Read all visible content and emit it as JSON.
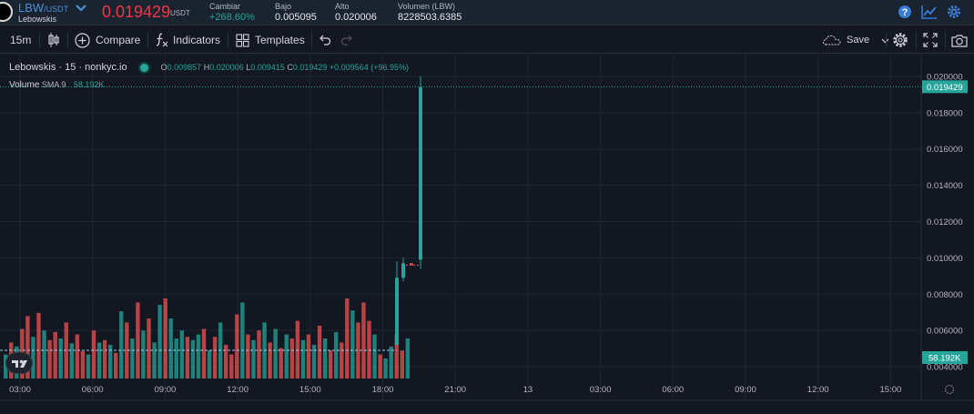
{
  "market": {
    "base": "LBW",
    "quote": "/USDT",
    "name": "Lebowskis",
    "price": "0.019429",
    "price_unit": "USDT",
    "stats": [
      {
        "label": "Cambiar",
        "value": "+268.60%",
        "up": true
      },
      {
        "label": "Bajo",
        "value": "0.005095"
      },
      {
        "label": "Alto",
        "value": "0.020006"
      },
      {
        "label": "Volumen (LBW)",
        "value": "8228503.6385"
      }
    ],
    "icons": [
      "help-icon",
      "chart-line-icon",
      "settings-icon"
    ]
  },
  "toolbar": {
    "interval": "15m",
    "compare": "Compare",
    "indicators": "Indicators",
    "templates": "Templates",
    "save": "Save"
  },
  "legend": {
    "title": "Lebowskis · 15 · nonkyc.io",
    "o_label": "O",
    "o_value": "0.009857",
    "h_label": "H",
    "h_value": "0.020006",
    "l_label": "L",
    "l_value": "0.009415",
    "c_label": "C",
    "c_value": "0.019429",
    "change": "+0.009564 (+96.95%)",
    "volume_label": "Volume",
    "volume_sma": "SMA 9",
    "volume_value": "58.192K"
  },
  "colors": {
    "up": "#26a69a",
    "down": "#ef5350",
    "background": "#131722",
    "grid": "#1f2430",
    "price_badge": "#26a69a"
  },
  "chart_data": {
    "type": "candlestick",
    "price_axis": {
      "ticks": [
        "0.020000",
        "0.018000",
        "0.016000",
        "0.014000",
        "0.012000",
        "0.010000",
        "0.008000",
        "0.006000",
        "0.004000"
      ],
      "min": 0.0034,
      "max": 0.0212
    },
    "last_price_label": "0.019429",
    "volume_sma_label": "58.192K",
    "time_axis": {
      "ticks": [
        "03:00",
        "06:00",
        "09:00",
        "12:00",
        "15:00",
        "18:00",
        "21:00",
        "13",
        "03:00",
        "06:00",
        "09:00",
        "12:00",
        "15:00"
      ]
    },
    "candles": [
      {
        "index": 0,
        "open": 0.0052,
        "high": 0.0098,
        "low": 0.0052,
        "close": 0.0089
      },
      {
        "index": 1,
        "open": 0.0089,
        "high": 0.01,
        "low": 0.0087,
        "close": 0.0097
      },
      {
        "index": 2,
        "open": 0.0097,
        "high": 0.0097,
        "low": 0.0096,
        "close": 0.0096
      },
      {
        "index": 3,
        "open": 0.0099,
        "high": 0.02,
        "low": 0.0094,
        "close": 0.0194
      }
    ],
    "volume_bars": [
      {
        "v": 0.3,
        "up": true
      },
      {
        "v": 0.45,
        "up": false
      },
      {
        "v": 0.4,
        "up": true
      },
      {
        "v": 0.62,
        "up": false
      },
      {
        "v": 0.78,
        "up": false
      },
      {
        "v": 0.52,
        "up": true
      },
      {
        "v": 0.82,
        "up": false
      },
      {
        "v": 0.6,
        "up": true
      },
      {
        "v": 0.48,
        "up": false
      },
      {
        "v": 0.58,
        "up": false
      },
      {
        "v": 0.5,
        "up": true
      },
      {
        "v": 0.7,
        "up": false
      },
      {
        "v": 0.44,
        "up": true
      },
      {
        "v": 0.55,
        "up": false
      },
      {
        "v": 0.34,
        "up": false
      },
      {
        "v": 0.3,
        "up": true
      },
      {
        "v": 0.6,
        "up": false
      },
      {
        "v": 0.45,
        "up": true
      },
      {
        "v": 0.48,
        "up": false
      },
      {
        "v": 0.42,
        "up": true
      },
      {
        "v": 0.32,
        "up": false
      },
      {
        "v": 0.84,
        "up": true
      },
      {
        "v": 0.7,
        "up": false
      },
      {
        "v": 0.5,
        "up": true
      },
      {
        "v": 0.95,
        "up": false
      },
      {
        "v": 0.6,
        "up": true
      },
      {
        "v": 0.75,
        "up": false
      },
      {
        "v": 0.45,
        "up": true
      },
      {
        "v": 0.92,
        "up": true
      },
      {
        "v": 1.0,
        "up": false
      },
      {
        "v": 0.75,
        "up": true
      },
      {
        "v": 0.5,
        "up": true
      },
      {
        "v": 0.6,
        "up": true
      },
      {
        "v": 0.52,
        "up": false
      },
      {
        "v": 0.48,
        "up": true
      },
      {
        "v": 0.55,
        "up": true
      },
      {
        "v": 0.62,
        "up": false
      },
      {
        "v": 0.35,
        "up": true
      },
      {
        "v": 0.52,
        "up": false
      },
      {
        "v": 0.7,
        "up": true
      },
      {
        "v": 0.42,
        "up": false
      },
      {
        "v": 0.3,
        "up": false
      },
      {
        "v": 0.8,
        "up": false
      },
      {
        "v": 0.95,
        "up": true
      },
      {
        "v": 0.55,
        "up": false
      },
      {
        "v": 0.48,
        "up": true
      },
      {
        "v": 0.6,
        "up": false
      },
      {
        "v": 0.7,
        "up": true
      },
      {
        "v": 0.45,
        "up": false
      },
      {
        "v": 0.62,
        "up": true
      },
      {
        "v": 0.38,
        "up": false
      },
      {
        "v": 0.55,
        "up": true
      },
      {
        "v": 0.5,
        "up": false
      },
      {
        "v": 0.72,
        "up": false
      },
      {
        "v": 0.48,
        "up": true
      },
      {
        "v": 0.55,
        "up": false
      },
      {
        "v": 0.42,
        "up": true
      },
      {
        "v": 0.66,
        "up": false
      },
      {
        "v": 0.5,
        "up": true
      },
      {
        "v": 0.35,
        "up": false
      },
      {
        "v": 0.58,
        "up": true
      },
      {
        "v": 0.45,
        "up": false
      },
      {
        "v": 1.0,
        "up": false
      },
      {
        "v": 0.85,
        "up": true
      },
      {
        "v": 0.7,
        "up": false
      },
      {
        "v": 0.95,
        "up": false
      },
      {
        "v": 0.72,
        "up": false
      },
      {
        "v": 0.55,
        "up": true
      },
      {
        "v": 0.3,
        "up": false
      },
      {
        "v": 0.25,
        "up": true
      },
      {
        "v": 0.4,
        "up": true
      },
      {
        "v": 0.55,
        "up": false
      },
      {
        "v": 0.35,
        "up": false
      },
      {
        "v": 0.5,
        "up": true
      }
    ]
  }
}
